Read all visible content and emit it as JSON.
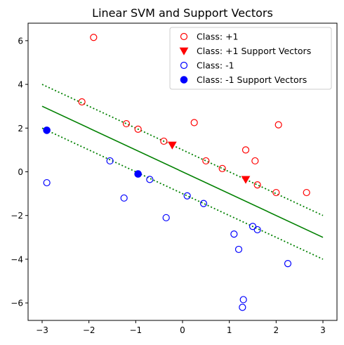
{
  "chart_data": {
    "type": "scatter",
    "title": "Linear SVM and Support Vectors",
    "xlabel": "",
    "ylabel": "",
    "xlim": [
      -3.3,
      3.3
    ],
    "ylim": [
      -6.8,
      6.8
    ],
    "xticks": [
      -3,
      -2,
      -1,
      0,
      1,
      2,
      3
    ],
    "yticks": [
      -6,
      -4,
      -2,
      0,
      2,
      4,
      6
    ],
    "grid": false,
    "legend_position": "top-right",
    "colors": {
      "positive": "#ff0000",
      "negative": "#0000ff",
      "boundary": "#008000"
    },
    "series": [
      {
        "name": "Class: +1",
        "marker": "open-circle",
        "color": "#ff0000",
        "points": [
          [
            -1.9,
            6.15
          ],
          [
            -2.15,
            3.2
          ],
          [
            -1.2,
            2.2
          ],
          [
            -0.95,
            1.95
          ],
          [
            -0.4,
            1.4
          ],
          [
            0.25,
            2.25
          ],
          [
            0.5,
            0.5
          ],
          [
            0.85,
            0.15
          ],
          [
            1.35,
            1.0
          ],
          [
            1.55,
            0.5
          ],
          [
            1.6,
            -0.6
          ],
          [
            2.05,
            2.15
          ],
          [
            2.0,
            -0.95
          ],
          [
            2.65,
            -0.95
          ]
        ]
      },
      {
        "name": "Class: +1 Support Vectors",
        "marker": "triangle-down",
        "color": "#ff0000",
        "points": [
          [
            -0.22,
            1.22
          ],
          [
            1.35,
            -0.35
          ]
        ]
      },
      {
        "name": "Class: -1",
        "marker": "open-circle",
        "color": "#0000ff",
        "points": [
          [
            -2.9,
            -0.5
          ],
          [
            -1.55,
            0.5
          ],
          [
            -1.25,
            -1.2
          ],
          [
            -0.7,
            -0.35
          ],
          [
            -0.35,
            -2.1
          ],
          [
            0.1,
            -1.1
          ],
          [
            0.45,
            -1.45
          ],
          [
            1.1,
            -2.85
          ],
          [
            1.2,
            -3.55
          ],
          [
            1.5,
            -2.5
          ],
          [
            1.6,
            -2.65
          ],
          [
            2.25,
            -4.2
          ],
          [
            1.3,
            -5.85
          ],
          [
            1.28,
            -6.2
          ]
        ]
      },
      {
        "name": "Class: -1 Support Vectors",
        "marker": "filled-circle",
        "color": "#0000ff",
        "points": [
          [
            -2.9,
            1.9
          ],
          [
            -0.95,
            -0.1
          ]
        ]
      }
    ],
    "lines": [
      {
        "kind": "decision-boundary",
        "style": "solid",
        "color": "#008000",
        "points": [
          [
            -3,
            3
          ],
          [
            3,
            -3
          ]
        ]
      },
      {
        "kind": "margin-upper",
        "style": "dotted",
        "color": "#008000",
        "points": [
          [
            -3,
            4
          ],
          [
            3,
            -2
          ]
        ]
      },
      {
        "kind": "margin-lower",
        "style": "dotted",
        "color": "#008000",
        "points": [
          [
            -3,
            2
          ],
          [
            3,
            -4
          ]
        ]
      }
    ]
  }
}
